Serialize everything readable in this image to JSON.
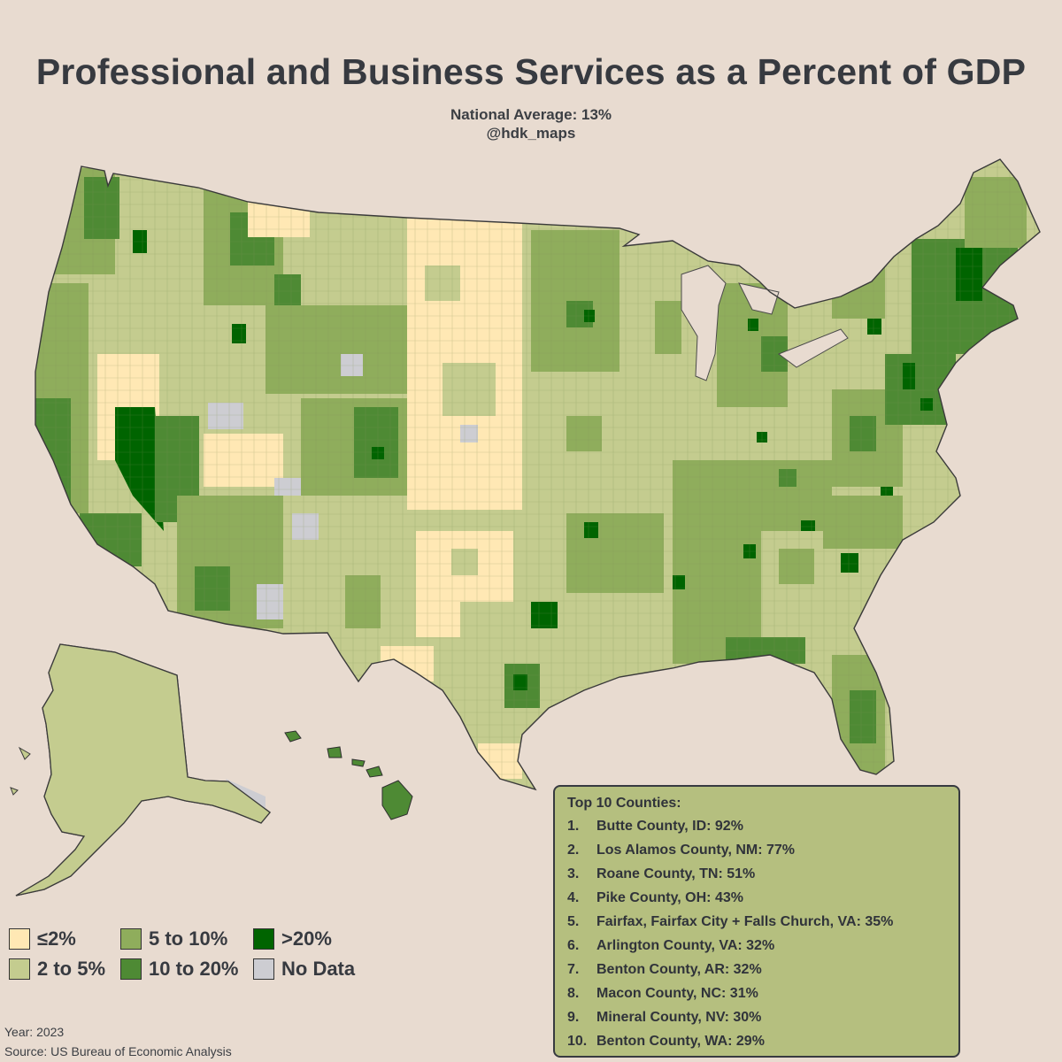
{
  "title": "Professional and Business Services as a Percent of GDP",
  "subtitle": {
    "line1": "National Average: 13%",
    "line2": "@hdk_maps"
  },
  "colors": {
    "background": "#e8dbd0",
    "le2": "#ffe8b4",
    "2to5": "#c4cc8f",
    "5to10": "#8fad5c",
    "10to20": "#4e8a34",
    "gt20": "#006400",
    "nodata": "#cdcdd2",
    "panel": "#b5bf7f"
  },
  "legend": [
    {
      "label": "≤2%",
      "color": "#ffe8b4"
    },
    {
      "label": "2 to 5%",
      "color": "#c4cc8f"
    },
    {
      "label": "5 to 10%",
      "color": "#8fad5c"
    },
    {
      "label": "10 to 20%",
      "color": "#4e8a34"
    },
    {
      "label": ">20%",
      "color": "#006400"
    },
    {
      "label": "No Data",
      "color": "#cdcdd2"
    }
  ],
  "top10": {
    "title": "Top 10 Counties:",
    "items": [
      {
        "rank": "1.",
        "text": "Butte County, ID: 92%"
      },
      {
        "rank": "2.",
        "text": "Los Alamos County, NM: 77%"
      },
      {
        "rank": "3.",
        "text": "Roane County, TN: 51%"
      },
      {
        "rank": "4.",
        "text": "Pike County, OH: 43%"
      },
      {
        "rank": "5.",
        "text": "Fairfax, Fairfax City + Falls Church, VA: 35%"
      },
      {
        "rank": "6.",
        "text": "Arlington County, VA: 32%"
      },
      {
        "rank": "7.",
        "text": "Benton County, AR: 32%"
      },
      {
        "rank": "8.",
        "text": "Macon County, NC: 31%"
      },
      {
        "rank": "9.",
        "text": "Mineral County, NV: 30%"
      },
      {
        "rank": "10.",
        "text": "Benton County, WA: 29%"
      }
    ]
  },
  "footer": {
    "year": "Year: 2023",
    "source": "Source: US Bureau of Economic Analysis"
  }
}
